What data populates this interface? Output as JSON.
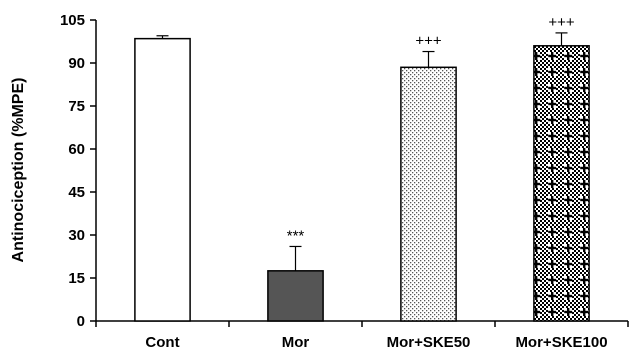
{
  "chart_data": {
    "type": "bar",
    "title": "",
    "xlabel": "",
    "ylabel": "Antinociception (%MPE)",
    "ylim": [
      0,
      105
    ],
    "yticks": [
      0,
      15,
      30,
      45,
      60,
      75,
      90,
      105
    ],
    "grid": false,
    "categories": [
      "Cont",
      "Mor",
      "Mor+SKE50",
      "Mor+SKE100"
    ],
    "values": [
      98.5,
      17.5,
      88.5,
      96
    ],
    "errors": [
      1,
      8.5,
      5.5,
      4.5
    ],
    "annotations": [
      "",
      "***",
      "+++",
      "+++"
    ],
    "bar_styles": [
      {
        "fill": "#ffffff",
        "pattern": "none"
      },
      {
        "fill": "#555555",
        "pattern": "none"
      },
      {
        "fill": "#ffffff",
        "pattern": "fine-dots"
      },
      {
        "fill": "#ffffff",
        "pattern": "checker-plus"
      }
    ]
  }
}
